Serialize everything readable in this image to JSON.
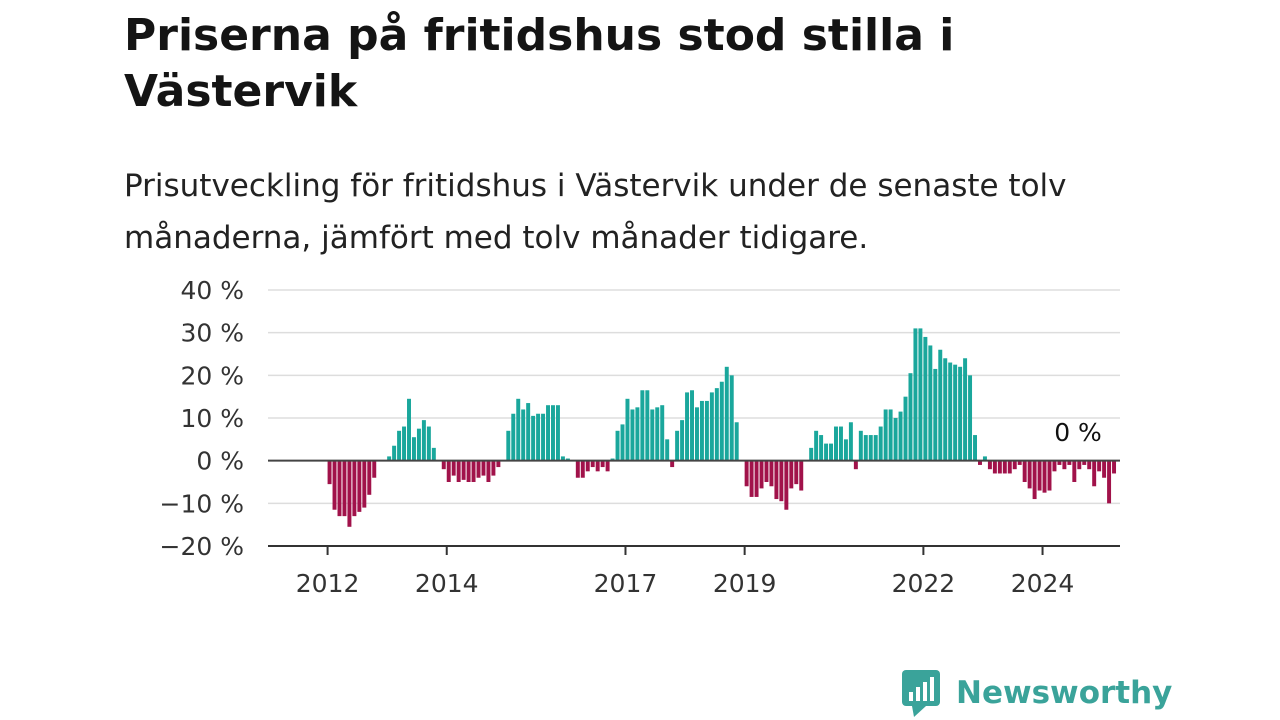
{
  "title": "Priserna på fritidshus stod stilla i Västervik",
  "subtitle": "Prisutveckling för fritidshus i Västervik under de senaste tolv månaderna, jämfört med tolv månader tidigare.",
  "brand": "Newsworthy",
  "colors": {
    "positive": "#1aa79c",
    "negative": "#a1124a",
    "grid": "#dddddd",
    "zero_line": "#444444",
    "brand": "#3aa39a"
  },
  "chart_data": {
    "type": "bar",
    "ylim": [
      -20,
      40
    ],
    "y_ticks": [
      40,
      30,
      20,
      10,
      0,
      -10,
      -20
    ],
    "y_tick_labels": [
      "40 %",
      "30 %",
      "20 %",
      "10 %",
      "0 %",
      "−10 %",
      "−20 %"
    ],
    "x_ticks": [
      2012,
      2014,
      2017,
      2019,
      2022,
      2024
    ],
    "x_tick_labels": [
      "2012",
      "2014",
      "2017",
      "2019",
      "2022",
      "2024"
    ],
    "grid": true,
    "annotation": "0 %",
    "series": [
      {
        "start": "2012-01",
        "frequency": "monthly",
        "values": [
          -5.5,
          -11.5,
          -13,
          -13,
          -15.5,
          -13,
          -12,
          -11,
          -8,
          -4,
          null,
          null,
          1,
          3.5,
          7,
          8,
          14.5,
          5.5,
          7.5,
          9.5,
          8,
          3,
          null,
          -2,
          -5,
          -3.5,
          -5,
          -4.5,
          -5,
          -5,
          -4,
          -3.5,
          -5,
          -3.5,
          -1.5,
          null,
          7,
          11,
          14.5,
          12,
          13.5,
          10.5,
          11,
          11,
          13,
          13,
          13,
          1,
          0.5,
          null,
          -4,
          -4,
          -2.5,
          -1.5,
          -2.5,
          -1.5,
          -2.5,
          0.5,
          7,
          8.5,
          14.5,
          12,
          12.5,
          16.5,
          16.5,
          12,
          12.5,
          13,
          5,
          -1.5,
          7,
          9.5,
          16,
          16.5,
          12.5,
          14,
          14,
          16,
          17,
          18.5,
          22,
          20,
          9,
          null,
          -6,
          -8.5,
          -8.5,
          -6.5,
          -5,
          -6,
          -9,
          -9.5,
          -11.5,
          -6.5,
          -5.5,
          -7,
          null,
          3,
          7,
          6,
          4,
          4,
          8,
          8,
          5,
          9,
          -2,
          7,
          6,
          6,
          6,
          8,
          12,
          12,
          10,
          11.5,
          15,
          20.5,
          31,
          31,
          29,
          27,
          21.5,
          26,
          24,
          23,
          22.5,
          22,
          24,
          20,
          6,
          -1,
          1,
          -2,
          -3,
          -3,
          -3,
          -3,
          -2,
          -1,
          -5,
          -6.5,
          -9,
          -7,
          -7.5,
          -7,
          -2.5,
          -1,
          -2,
          -1,
          -5,
          -2,
          -1,
          -2,
          -6,
          -2.5,
          -4,
          -10,
          -3,
          null
        ]
      }
    ]
  }
}
